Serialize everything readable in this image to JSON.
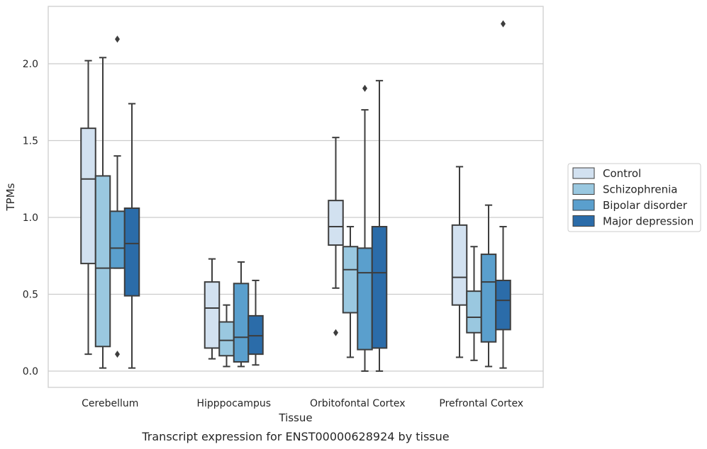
{
  "chart_data": {
    "type": "box",
    "title": "",
    "caption": "Transcript expression for ENST00000628924 by tissue",
    "xlabel": "Tissue",
    "ylabel": "TPMs",
    "ylim": [
      -0.11,
      2.38
    ],
    "yticks": [
      "0.0",
      "0.5",
      "1.0",
      "1.5",
      "2.0"
    ],
    "ytick_values": [
      0.0,
      0.5,
      1.0,
      1.5,
      2.0
    ],
    "grid": "horizontal",
    "legend_position": "center-right",
    "categories": [
      "Cerebellum",
      "Hipppocampus",
      "Orbitofontal Cortex",
      "Prefrontal Cortex"
    ],
    "series": [
      {
        "name": "Control",
        "color": "#d2e1f0",
        "boxes": [
          {
            "whisker_low": 0.11,
            "q1": 0.7,
            "median": 1.25,
            "q3": 1.58,
            "whisker_high": 2.02,
            "outliers": []
          },
          {
            "whisker_low": 0.08,
            "q1": 0.15,
            "median": 0.41,
            "q3": 0.58,
            "whisker_high": 0.73,
            "outliers": []
          },
          {
            "whisker_low": 0.54,
            "q1": 0.82,
            "median": 0.94,
            "q3": 1.11,
            "whisker_high": 1.52,
            "outliers": [
              0.25
            ]
          },
          {
            "whisker_low": 0.09,
            "q1": 0.43,
            "median": 0.61,
            "q3": 0.95,
            "whisker_high": 1.33,
            "outliers": []
          }
        ]
      },
      {
        "name": "Schizophrenia",
        "color": "#9ac8e0",
        "boxes": [
          {
            "whisker_low": 0.02,
            "q1": 0.16,
            "median": 0.67,
            "q3": 1.27,
            "whisker_high": 2.04,
            "outliers": []
          },
          {
            "whisker_low": 0.03,
            "q1": 0.1,
            "median": 0.2,
            "q3": 0.32,
            "whisker_high": 0.43,
            "outliers": []
          },
          {
            "whisker_low": 0.09,
            "q1": 0.38,
            "median": 0.66,
            "q3": 0.81,
            "whisker_high": 0.94,
            "outliers": []
          },
          {
            "whisker_low": 0.07,
            "q1": 0.25,
            "median": 0.35,
            "q3": 0.52,
            "whisker_high": 0.81,
            "outliers": []
          }
        ]
      },
      {
        "name": "Bipolar disorder",
        "color": "#5a9fcd",
        "boxes": [
          {
            "whisker_low": 0.67,
            "q1": 0.67,
            "median": 0.8,
            "q3": 1.04,
            "whisker_high": 1.4,
            "outliers": [
              2.16,
              0.11
            ]
          },
          {
            "whisker_low": 0.03,
            "q1": 0.06,
            "median": 0.22,
            "q3": 0.57,
            "whisker_high": 0.71,
            "outliers": []
          },
          {
            "whisker_low": 0.0,
            "q1": 0.14,
            "median": 0.64,
            "q3": 0.8,
            "whisker_high": 1.7,
            "outliers": [
              1.84
            ]
          },
          {
            "whisker_low": 0.03,
            "q1": 0.19,
            "median": 0.58,
            "q3": 0.76,
            "whisker_high": 1.08,
            "outliers": []
          }
        ]
      },
      {
        "name": "Major depression",
        "color": "#2b6ca9",
        "boxes": [
          {
            "whisker_low": 0.02,
            "q1": 0.49,
            "median": 0.83,
            "q3": 1.06,
            "whisker_high": 1.74,
            "outliers": []
          },
          {
            "whisker_low": 0.04,
            "q1": 0.11,
            "median": 0.23,
            "q3": 0.36,
            "whisker_high": 0.59,
            "outliers": []
          },
          {
            "whisker_low": 0.0,
            "q1": 0.15,
            "median": 0.64,
            "q3": 0.94,
            "whisker_high": 1.89,
            "outliers": []
          },
          {
            "whisker_low": 0.02,
            "q1": 0.27,
            "median": 0.46,
            "q3": 0.59,
            "whisker_high": 0.94,
            "outliers": [
              2.26
            ]
          }
        ]
      }
    ]
  }
}
